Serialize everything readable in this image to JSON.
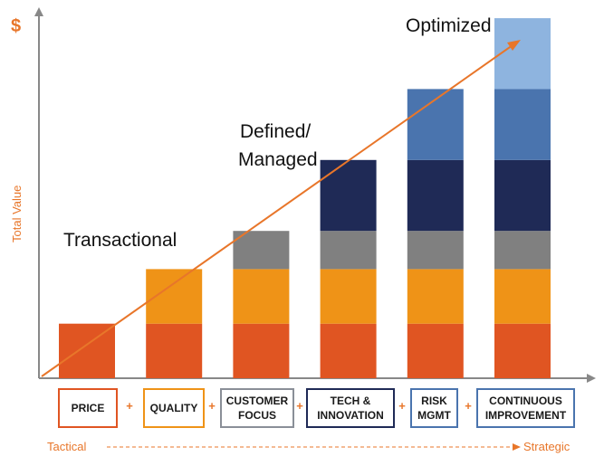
{
  "colors": {
    "accent": "#e8762a",
    "axis": "#888888",
    "segments": {
      "price": "#e05522",
      "quality": "#ef9317",
      "customer": "#808080",
      "tech": "#1f2a56",
      "risk": "#4a74ae",
      "continuous": "#8eb4df"
    },
    "label_borders": [
      "#e05522",
      "#ef9317",
      "#8a8f98",
      "#1f2a56",
      "#4a74ae",
      "#4a74ae"
    ]
  },
  "currency_symbol": "$",
  "y_axis_label": "Total Value",
  "stage_labels": {
    "transactional": "Transactional",
    "defined": [
      "Defined/",
      "Managed"
    ],
    "optimized": "Optimized"
  },
  "chart_data": {
    "type": "bar",
    "stacked": true,
    "categories": [
      "PRICE",
      "QUALITY",
      "CUSTOMER FOCUS",
      "TECH & INNOVATION",
      "RISK MGMT",
      "CONTINUOUS IMPROVEMENT"
    ],
    "series": [
      {
        "values": [
          1.0,
          1.0,
          1.0,
          1.0,
          1.0,
          1.0
        ]
      },
      {
        "values": [
          0,
          1.0,
          1.0,
          1.0,
          1.0,
          1.0
        ]
      },
      {
        "values": [
          0,
          0,
          0.7,
          0.7,
          0.7,
          0.7
        ]
      },
      {
        "values": [
          0,
          0,
          0,
          1.3,
          1.3,
          1.3
        ]
      },
      {
        "values": [
          0,
          0,
          0,
          0,
          1.3,
          1.3
        ]
      },
      {
        "values": [
          0,
          0,
          0,
          0,
          0,
          1.3
        ]
      }
    ],
    "ylabel": "Total Value",
    "ylim": [
      0,
      6.8
    ]
  },
  "labels": [
    "PRICE",
    "QUALITY",
    "CUSTOMER\nFOCUS",
    "TECH &\nINNOVATION",
    "RISK\nMGMT",
    "CONTINUOUS\nIMPROVEMENT"
  ],
  "plus_sign": "+",
  "bottom": {
    "left": "Tactical",
    "right": "Strategic"
  }
}
